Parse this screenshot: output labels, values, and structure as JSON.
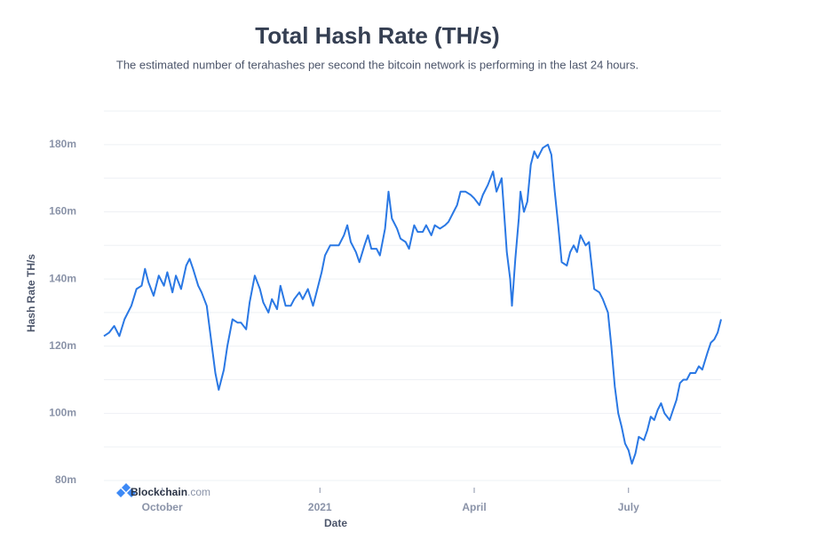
{
  "chart_data": {
    "type": "line",
    "title": "Total Hash Rate (TH/s)",
    "subtitle": "The estimated number of terahashes per second the bitcoin network is performing in the last 24 hours.",
    "y_label": "Hash Rate TH/s",
    "x_label": "Date",
    "brand": {
      "name": "Blockchain",
      "suffix": ".com"
    },
    "series": [
      {
        "name": "Hash Rate TH/s",
        "color": "#2a78e4",
        "x": [
          0,
          3,
          6,
          9,
          12,
          16,
          19,
          22,
          24,
          26,
          29,
          32,
          35,
          37,
          40,
          42,
          45,
          48,
          50,
          52,
          55,
          57,
          60,
          63,
          65,
          67,
          70,
          72,
          75,
          78,
          80,
          83,
          85,
          88,
          91,
          93,
          96,
          98,
          101,
          103,
          106,
          109,
          111,
          114,
          116,
          119,
          122,
          124,
          127,
          129,
          132,
          135,
          137,
          140,
          142,
          144,
          147,
          149,
          152,
          154,
          156,
          159,
          161,
          164,
          166,
          168,
          171,
          173,
          176,
          178,
          181,
          183,
          186,
          188,
          191,
          193,
          196,
          199,
          201,
          204,
          206,
          208,
          211,
          214,
          216,
          219,
          221,
          224,
          227,
          229,
          232,
          233,
          235,
          237,
          238,
          240,
          242,
          243,
          245,
          247,
          249,
          251,
          253,
          256,
          259,
          261,
          263,
          265,
          267,
          270,
          272,
          274,
          276,
          278,
          281,
          283,
          286,
          289,
          291,
          294,
          296,
          298,
          300,
          302,
          304,
          306,
          308,
          310,
          312,
          315,
          317,
          319,
          321,
          323,
          325,
          327,
          330,
          332,
          334,
          336,
          338,
          340,
          342,
          345,
          347,
          349,
          352,
          354,
          356,
          358,
          360
        ],
        "values": [
          123,
          124,
          126,
          123,
          128,
          132,
          137,
          138,
          143,
          139,
          135,
          141,
          138,
          142,
          136,
          141,
          137,
          144,
          146,
          143,
          138,
          136,
          132,
          120,
          112,
          107,
          113,
          120,
          128,
          127,
          127,
          125,
          133,
          141,
          137,
          133,
          130,
          134,
          131,
          138,
          132,
          132,
          134,
          136,
          134,
          137,
          132,
          136,
          142,
          147,
          150,
          150,
          150,
          153,
          156,
          151,
          148,
          145,
          150,
          153,
          149,
          149,
          147,
          155,
          166,
          158,
          155,
          152,
          151,
          149,
          156,
          154,
          154,
          156,
          153,
          156,
          155,
          156,
          157,
          160,
          162,
          166,
          166,
          165,
          164,
          162,
          165,
          168,
          172,
          166,
          170,
          163,
          148,
          140,
          132,
          146,
          158,
          166,
          160,
          163,
          174,
          178,
          176,
          179,
          180,
          177,
          166,
          156,
          145,
          144,
          148,
          150,
          148,
          153,
          150,
          151,
          137,
          136,
          134,
          130,
          120,
          108,
          100,
          96,
          91,
          89,
          85,
          88,
          93,
          92,
          95,
          99,
          98,
          101,
          103,
          100,
          98,
          101,
          104,
          109,
          110,
          110,
          112,
          112,
          114,
          113,
          118,
          121,
          122,
          124,
          128
        ]
      }
    ],
    "xlim": [
      0,
      360
    ],
    "xticks": [
      {
        "value": 34,
        "label": "October"
      },
      {
        "value": 126,
        "label": "2021"
      },
      {
        "value": 216,
        "label": "April"
      },
      {
        "value": 306,
        "label": "July"
      }
    ],
    "ylim": [
      80,
      190
    ],
    "yticks": [
      {
        "value": 80,
        "label": "80m"
      },
      {
        "value": 100,
        "label": "100m"
      },
      {
        "value": 120,
        "label": "120m"
      },
      {
        "value": 140,
        "label": "140m"
      },
      {
        "value": 160,
        "label": "160m"
      },
      {
        "value": 180,
        "label": "180m"
      }
    ],
    "minor_grid": [
      90,
      110,
      130,
      150,
      170,
      190
    ],
    "grid": true
  }
}
